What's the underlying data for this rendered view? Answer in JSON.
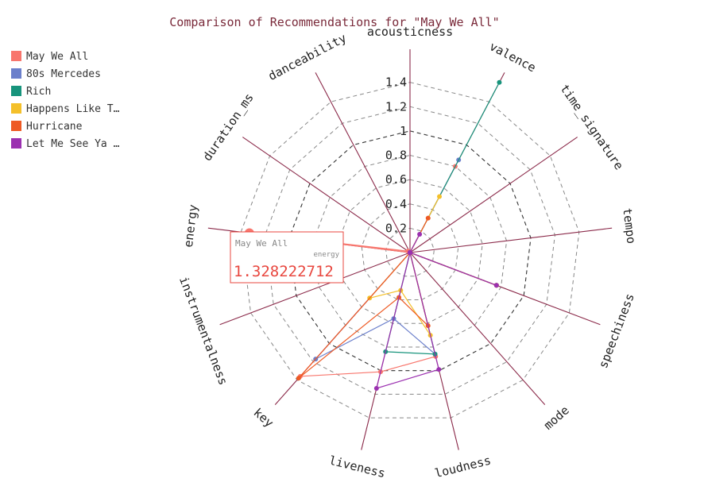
{
  "chart_data": {
    "type": "radar",
    "title": "Comparison of Recommendations for \"May We All\"",
    "axes": [
      "acousticness",
      "valence",
      "time_signature",
      "tempo",
      "speechiness",
      "mode",
      "loudness",
      "liveness",
      "key",
      "instrumentalness",
      "energy",
      "duration_ms",
      "danceability"
    ],
    "radial_ticks": [
      "0.2",
      "0.4",
      "0.6",
      "0.8",
      "1",
      "1.2",
      "1.4"
    ],
    "radial_tick_values": [
      0.2,
      0.4,
      0.6,
      0.8,
      1,
      1.2,
      1.4
    ],
    "rmax": 1.6,
    "series": [
      {
        "name": "May We All",
        "legend_label": "May We All",
        "color": "#f8766d",
        "values": [
          0.0,
          0.8,
          0.0,
          0.0,
          0.76,
          0.0,
          0.88,
          1.01,
          1.36,
          0.0,
          1.33,
          0.02,
          0.0
        ]
      },
      {
        "name": "80s Mercedes",
        "legend_label": "80s Mercedes",
        "color": "#6b7fcb",
        "values": [
          0.0,
          0.86,
          0.0,
          0.0,
          0.76,
          0.0,
          0.86,
          0.56,
          1.17,
          0.0,
          0.0,
          0.0,
          0.0
        ]
      },
      {
        "name": "Rich",
        "legend_label": "Rich",
        "color": "#17947c",
        "values": [
          0.0,
          1.58,
          0.0,
          0.0,
          0.76,
          0.0,
          0.86,
          0.84,
          0.0,
          0.0,
          0.0,
          0.0,
          0.0
        ]
      },
      {
        "name": "Happens Like That",
        "legend_label": "Happens Like T…",
        "color": "#f4c02a",
        "values": [
          0.0,
          0.52,
          0.0,
          0.0,
          0.76,
          0.0,
          0.7,
          0.32,
          0.5,
          0.0,
          0.0,
          0.0,
          0.0
        ]
      },
      {
        "name": "Hurricane",
        "legend_label": "Hurricane",
        "color": "#ee5a24",
        "values": [
          0.0,
          0.32,
          0.0,
          0.0,
          0.76,
          0.0,
          0.62,
          0.38,
          1.38,
          0.0,
          0.0,
          0.0,
          0.0
        ]
      },
      {
        "name": "Let Me See Ya Girl",
        "legend_label": "Let Me See Ya …",
        "color": "#9b30b0",
        "values": [
          0.0,
          0.17,
          0.0,
          0.0,
          0.76,
          0.0,
          0.99,
          1.15,
          0.0,
          0.0,
          0.0,
          0.0,
          0.0
        ]
      }
    ],
    "legend_position": "top-left",
    "grid": true
  },
  "tooltip": {
    "series_name": "May We All",
    "axis": "energy",
    "value": "1.328222712",
    "color": "#e8473f"
  }
}
